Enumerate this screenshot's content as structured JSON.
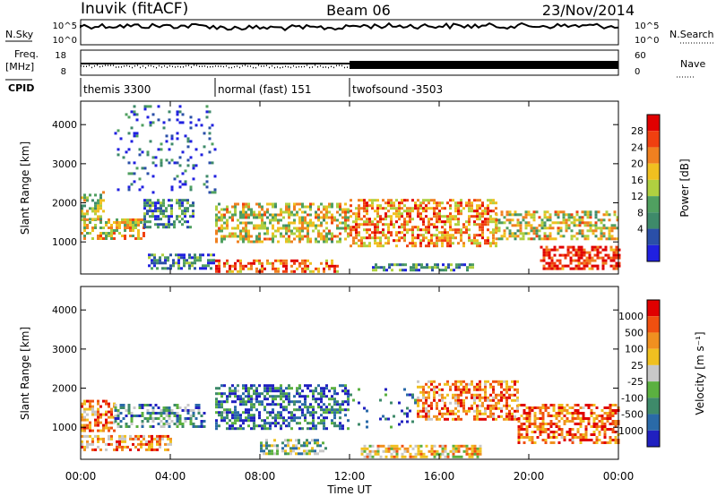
{
  "header": {
    "station": "Inuvik (fitACF)",
    "beam": "Beam 06",
    "date": "23/Nov/2014"
  },
  "top_panels": {
    "nsky_label": "N.Sky",
    "nsky_ticks": [
      "10^5",
      "10^0"
    ],
    "nsearch_label": "N.Search",
    "nsearch_ticks": [
      "10^5",
      "10^0"
    ],
    "freq_label": "Freq.",
    "freq_unit": "[MHz]",
    "freq_ticks": [
      "18",
      "8"
    ],
    "nave_label": "Nave",
    "nave_ticks": [
      "60",
      "0"
    ],
    "cpid_label": "CPID",
    "cpid_segments": [
      {
        "label": "themis 3300",
        "start_hour": 0,
        "end_hour": 6
      },
      {
        "label": "normal (fast) 151",
        "start_hour": 6,
        "end_hour": 12
      },
      {
        "label": "twofsound -3503",
        "start_hour": 12,
        "end_hour": 24
      }
    ]
  },
  "chart_data": [
    {
      "type": "heatmap",
      "name": "power",
      "ylabel": "Slant Range [km]",
      "xlabel": "Time UT",
      "xlim_hours": [
        0,
        24
      ],
      "x_ticks": [
        "00:00",
        "04:00",
        "08:00",
        "12:00",
        "16:00",
        "20:00",
        "00:00"
      ],
      "x_tick_hours": [
        0,
        4,
        8,
        12,
        16,
        20,
        24
      ],
      "ylim_km": [
        180,
        4600
      ],
      "y_ticks": [
        "1000",
        "2000",
        "3000",
        "4000"
      ],
      "y_tick_values": [
        1000,
        2000,
        3000,
        4000
      ],
      "colorbar": {
        "label": "Power [dB]",
        "ticks": [
          "28",
          "24",
          "20",
          "16",
          "12",
          "8",
          "4"
        ],
        "colors": [
          "#2020e0",
          "#2a4fa8",
          "#3e8a6a",
          "#50a060",
          "#b0d040",
          "#f0c020",
          "#f08020",
          "#f04010",
          "#e00000"
        ]
      },
      "echo_regions": [
        {
          "t0": 0.0,
          "t1": 2.8,
          "r0": 1100,
          "r1": 1600,
          "level": 0.6
        },
        {
          "t0": 0.0,
          "t1": 1.0,
          "r0": 1600,
          "r1": 2300,
          "level": 0.45
        },
        {
          "t0": 2.8,
          "t1": 5.0,
          "r0": 1400,
          "r1": 2100,
          "level": 0.3
        },
        {
          "t0": 3.0,
          "t1": 6.0,
          "r0": 300,
          "r1": 700,
          "level": 0.25
        },
        {
          "t0": 6.0,
          "t1": 12.0,
          "r0": 1000,
          "r1": 2000,
          "level": 0.55
        },
        {
          "t0": 6.0,
          "t1": 11.5,
          "r0": 250,
          "r1": 550,
          "level": 0.75
        },
        {
          "t0": 12.0,
          "t1": 18.5,
          "r0": 900,
          "r1": 2100,
          "level": 0.7
        },
        {
          "t0": 13.0,
          "t1": 17.5,
          "r0": 250,
          "r1": 450,
          "level": 0.3
        },
        {
          "t0": 18.5,
          "t1": 24.0,
          "r0": 1100,
          "r1": 1800,
          "level": 0.55
        },
        {
          "t0": 20.5,
          "t1": 24.0,
          "r0": 350,
          "r1": 900,
          "level": 0.9
        },
        {
          "t0": 1.5,
          "t1": 6.0,
          "r0": 2300,
          "r1": 4500,
          "level": 0.15
        }
      ]
    },
    {
      "type": "heatmap",
      "name": "velocity",
      "ylabel": "Slant Range [km]",
      "xlabel": "Time UT",
      "xlim_hours": [
        0,
        24
      ],
      "x_ticks": [
        "00:00",
        "04:00",
        "08:00",
        "12:00",
        "16:00",
        "20:00",
        "00:00"
      ],
      "x_tick_hours": [
        0,
        4,
        8,
        12,
        16,
        20,
        24
      ],
      "ylim_km": [
        180,
        4600
      ],
      "y_ticks": [
        "1000",
        "2000",
        "3000",
        "4000"
      ],
      "y_tick_values": [
        1000,
        2000,
        3000,
        4000
      ],
      "colorbar": {
        "label": "Velocity [m s⁻¹]",
        "ticks": [
          "1000",
          "500",
          "100",
          "25",
          "-25",
          "-100",
          "-500",
          "-1000"
        ],
        "colors": [
          "#2020c0",
          "#2a6aa8",
          "#3e8a6a",
          "#5bb040",
          "#c8c8c8",
          "#f0c020",
          "#f09020",
          "#f05010",
          "#e00000"
        ]
      },
      "echo_regions": [
        {
          "t0": 0.0,
          "t1": 1.5,
          "r0": 900,
          "r1": 1700,
          "level": 0.75
        },
        {
          "t0": 1.5,
          "t1": 5.5,
          "r0": 1000,
          "r1": 1600,
          "level": 0.3
        },
        {
          "t0": 0.0,
          "t1": 4.0,
          "r0": 400,
          "r1": 800,
          "level": 0.7
        },
        {
          "t0": 6.0,
          "t1": 12.0,
          "r0": 1000,
          "r1": 2100,
          "level": 0.2
        },
        {
          "t0": 8.0,
          "t1": 11.0,
          "r0": 300,
          "r1": 700,
          "level": 0.4
        },
        {
          "t0": 12.0,
          "t1": 15.0,
          "r0": 1000,
          "r1": 2000,
          "level": 0.15
        },
        {
          "t0": 15.0,
          "t1": 19.5,
          "r0": 1200,
          "r1": 2200,
          "level": 0.75
        },
        {
          "t0": 19.5,
          "t1": 24.0,
          "r0": 600,
          "r1": 1600,
          "level": 0.8
        },
        {
          "t0": 12.5,
          "t1": 18.0,
          "r0": 250,
          "r1": 550,
          "level": 0.6
        }
      ]
    }
  ]
}
